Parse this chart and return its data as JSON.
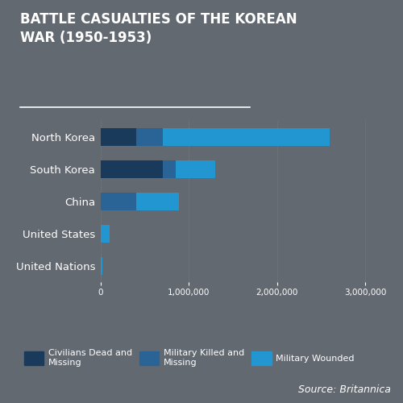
{
  "title": "BATTLE CASUALTIES OF THE KOREAN\nWAR (1950-1953)",
  "background_color": "#636971",
  "countries": [
    "North Korea",
    "South Korea",
    "China",
    "United States",
    "United Nations"
  ],
  "civilians_dead_missing": [
    400000,
    700000,
    0,
    0,
    0
  ],
  "military_killed_missing": [
    300000,
    150000,
    400000,
    0,
    0
  ],
  "military_wounded": [
    1900000,
    450000,
    490000,
    103000,
    16000
  ],
  "color_civilians": "#1a3a5c",
  "color_military_killed": "#2a6496",
  "color_military_wounded": "#2196d0",
  "legend_labels": [
    "Civilians Dead and\nMissing",
    "Military Killed and\nMissing",
    "Military Wounded"
  ],
  "source_text": "Source: Britannica",
  "xlim": [
    0,
    3200000
  ],
  "xticks": [
    0,
    1000000,
    2000000,
    3000000
  ],
  "xtick_labels": [
    "0",
    "1,000,000",
    "2,000,000",
    "3,000,000"
  ]
}
